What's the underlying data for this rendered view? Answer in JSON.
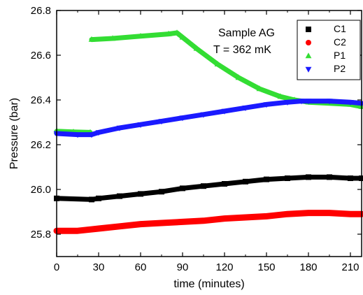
{
  "chart_data": {
    "type": "scatter",
    "xlabel": "time (minutes)",
    "ylabel": "Pressure (bar)",
    "xlim": [
      0,
      218
    ],
    "ylim": [
      25.7,
      26.8
    ],
    "x_ticks": [
      0,
      30,
      60,
      90,
      120,
      150,
      180,
      210
    ],
    "y_ticks": [
      25.8,
      26.0,
      26.2,
      26.4,
      26.6,
      26.8
    ],
    "y_tick_labels": [
      "25.8",
      "26.0",
      "26.2",
      "26.4",
      "26.6",
      "26.8"
    ],
    "grid": false,
    "legend_position": "top-right",
    "annotations": [
      "Sample AG",
      "T = 362 mK"
    ],
    "series": [
      {
        "name": "C1",
        "marker": "square",
        "color": "#000000",
        "x": [
          0,
          25,
          30,
          45,
          60,
          75,
          90,
          105,
          120,
          135,
          150,
          165,
          180,
          195,
          210,
          218
        ],
        "y": [
          25.96,
          25.955,
          25.96,
          25.97,
          25.98,
          25.99,
          26.005,
          26.015,
          26.025,
          26.035,
          26.045,
          26.05,
          26.055,
          26.055,
          26.05,
          26.05
        ]
      },
      {
        "name": "C2",
        "marker": "circle",
        "color": "#ff0000",
        "x": [
          0,
          15,
          30,
          45,
          60,
          75,
          90,
          105,
          120,
          135,
          150,
          165,
          180,
          195,
          210,
          218
        ],
        "y": [
          25.815,
          25.815,
          25.825,
          25.835,
          25.845,
          25.85,
          25.855,
          25.86,
          25.87,
          25.875,
          25.88,
          25.89,
          25.895,
          25.895,
          25.89,
          25.89
        ]
      },
      {
        "name": "P1",
        "marker": "triangle-up",
        "color": "#33dd33",
        "x": [
          0,
          12,
          24,
          25,
          40,
          60,
          80,
          86,
          90,
          100,
          115,
          130,
          145,
          160,
          170,
          180,
          195,
          210,
          218
        ],
        "y": [
          26.26,
          26.257,
          26.255,
          26.67,
          26.675,
          26.685,
          26.695,
          26.7,
          26.68,
          26.63,
          26.56,
          26.5,
          26.45,
          26.415,
          26.4,
          26.39,
          26.385,
          26.38,
          26.37
        ]
      },
      {
        "name": "P2",
        "marker": "triangle-down",
        "color": "#1a1aff",
        "x": [
          0,
          15,
          25,
          30,
          45,
          60,
          75,
          90,
          105,
          120,
          135,
          150,
          165,
          175,
          180,
          195,
          210,
          218
        ],
        "y": [
          26.25,
          26.245,
          26.245,
          26.255,
          26.275,
          26.29,
          26.305,
          26.32,
          26.335,
          26.35,
          26.365,
          26.38,
          26.39,
          26.395,
          26.395,
          26.395,
          26.39,
          26.385
        ]
      }
    ]
  }
}
